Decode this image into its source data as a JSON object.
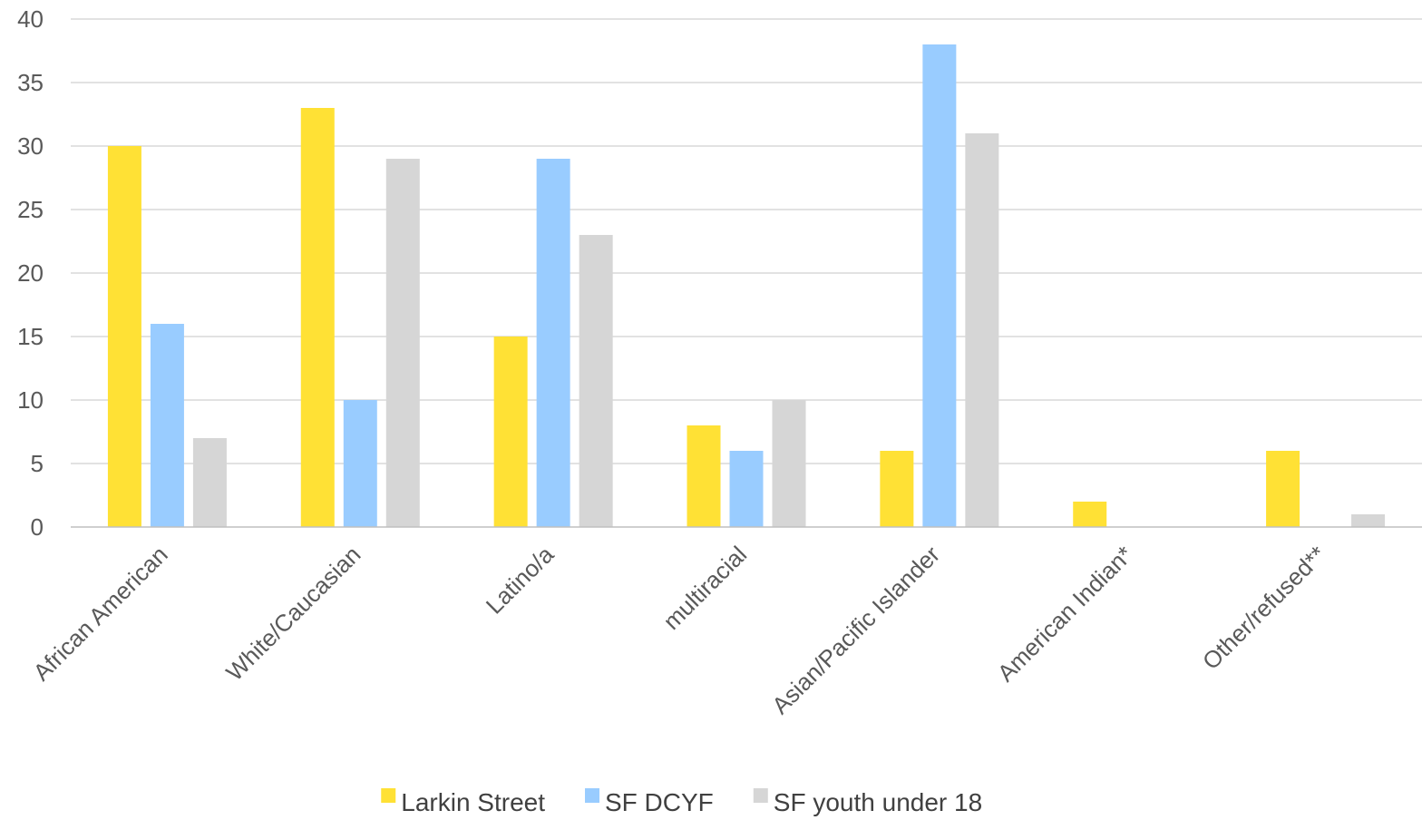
{
  "chart_data": {
    "type": "bar",
    "title": "",
    "xlabel": "",
    "ylabel": "",
    "categories": [
      "African American",
      "White/Caucasian",
      "Latino/a",
      "multiracial",
      "Asian/Pacific Islander",
      "American Indian*",
      "Other/refused**"
    ],
    "series": [
      {
        "name": "Larkin Street",
        "color": "#FFE135",
        "values": [
          30,
          33,
          15,
          8,
          6,
          2,
          6
        ]
      },
      {
        "name": "SF DCYF",
        "color": "#99CCFF",
        "values": [
          16,
          10,
          29,
          6,
          38,
          0,
          0
        ]
      },
      {
        "name": "SF youth under 18",
        "color": "#D6D6D6",
        "values": [
          7,
          29,
          23,
          10,
          31,
          0,
          1
        ]
      }
    ],
    "ylim": [
      0,
      40
    ],
    "yticks": [
      0,
      5,
      10,
      15,
      20,
      25,
      30,
      35,
      40
    ],
    "grid": true,
    "legend": "bottom"
  }
}
